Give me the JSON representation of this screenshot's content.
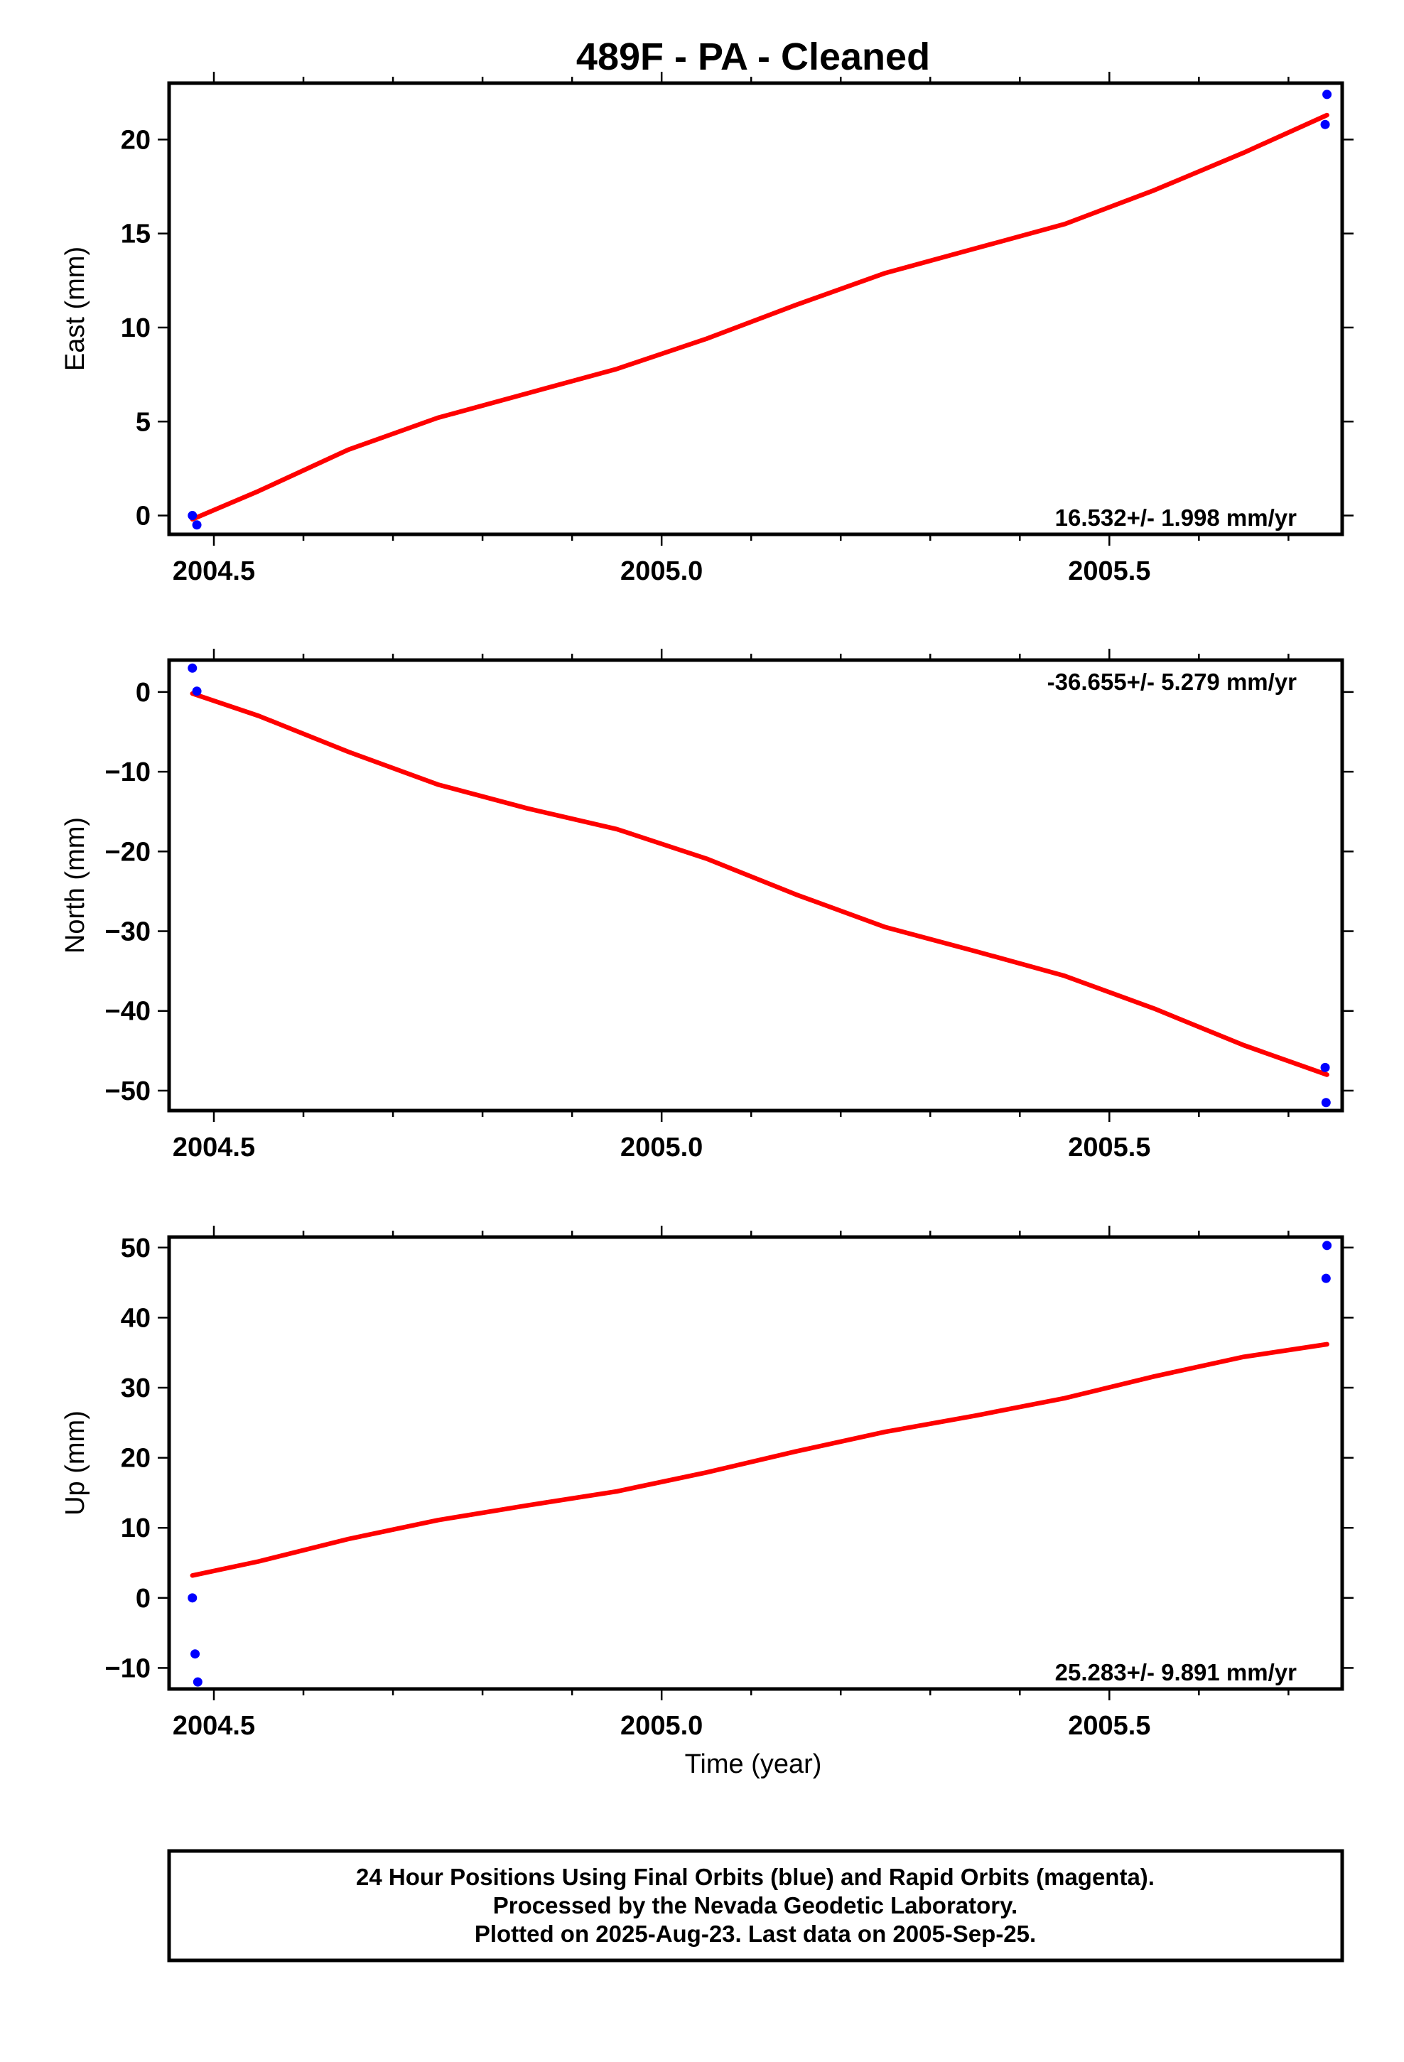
{
  "title": "489F  - PA - Cleaned",
  "footer": {
    "lines": [
      "24 Hour Positions Using Final Orbits (blue) and Rapid Orbits (magenta).",
      "Processed by the Nevada Geodetic Laboratory.",
      "Plotted on 2025-Aug-23. Last data on 2005-Sep-25."
    ]
  },
  "colors": {
    "data_points": "#0000ff",
    "fit_line": "#ff0000",
    "frame": "#000000"
  },
  "chart_data": [
    {
      "type": "scatter",
      "ylabel": "East (mm)",
      "xlabel": "",
      "xlim": [
        2004.45,
        2005.76
      ],
      "ylim": [
        -1,
        23
      ],
      "xticks": [
        2004.5,
        2005.0,
        2005.5
      ],
      "xtick_labels": [
        "2004.5",
        "2005.0",
        "2005.5"
      ],
      "yticks": [
        0,
        5,
        10,
        15,
        20
      ],
      "ytick_labels": [
        "0",
        "5",
        "10",
        "15",
        "20"
      ],
      "rate_text": "16.532+/- 1.998 mm/yr",
      "rate_position": "bottom-right",
      "points": [
        {
          "x": 2004.476,
          "y": 0.0
        },
        {
          "x": 2004.481,
          "y": -0.5
        },
        {
          "x": 2005.741,
          "y": 20.8
        },
        {
          "x": 2005.743,
          "y": 22.4
        }
      ],
      "fit": [
        {
          "x": 2004.476,
          "y": -0.2
        },
        {
          "x": 2004.55,
          "y": 1.3
        },
        {
          "x": 2004.65,
          "y": 3.5
        },
        {
          "x": 2004.75,
          "y": 5.2
        },
        {
          "x": 2004.85,
          "y": 6.5
        },
        {
          "x": 2004.95,
          "y": 7.8
        },
        {
          "x": 2005.05,
          "y": 9.4
        },
        {
          "x": 2005.15,
          "y": 11.2
        },
        {
          "x": 2005.25,
          "y": 12.9
        },
        {
          "x": 2005.35,
          "y": 14.2
        },
        {
          "x": 2005.45,
          "y": 15.5
        },
        {
          "x": 2005.55,
          "y": 17.3
        },
        {
          "x": 2005.65,
          "y": 19.3
        },
        {
          "x": 2005.743,
          "y": 21.3
        }
      ]
    },
    {
      "type": "scatter",
      "ylabel": "North (mm)",
      "xlabel": "",
      "xlim": [
        2004.45,
        2005.76
      ],
      "ylim": [
        -52.5,
        4
      ],
      "xticks": [
        2004.5,
        2005.0,
        2005.5
      ],
      "xtick_labels": [
        "2004.5",
        "2005.0",
        "2005.5"
      ],
      "yticks": [
        0,
        -10,
        -20,
        -30,
        -40,
        -50
      ],
      "ytick_labels": [
        "0",
        "−10",
        "−20",
        "−30",
        "−40",
        "−50"
      ],
      "rate_text": "-36.655+/- 5.279 mm/yr",
      "rate_position": "top-right",
      "points": [
        {
          "x": 2004.476,
          "y": 3.0
        },
        {
          "x": 2004.481,
          "y": 0.1
        },
        {
          "x": 2005.741,
          "y": -47.1
        },
        {
          "x": 2005.742,
          "y": -51.5
        }
      ],
      "fit": [
        {
          "x": 2004.476,
          "y": -0.2
        },
        {
          "x": 2004.55,
          "y": -3.0
        },
        {
          "x": 2004.65,
          "y": -7.5
        },
        {
          "x": 2004.75,
          "y": -11.6
        },
        {
          "x": 2004.85,
          "y": -14.6
        },
        {
          "x": 2004.95,
          "y": -17.2
        },
        {
          "x": 2005.05,
          "y": -20.9
        },
        {
          "x": 2005.15,
          "y": -25.4
        },
        {
          "x": 2005.25,
          "y": -29.5
        },
        {
          "x": 2005.35,
          "y": -32.5
        },
        {
          "x": 2005.45,
          "y": -35.6
        },
        {
          "x": 2005.55,
          "y": -39.7
        },
        {
          "x": 2005.65,
          "y": -44.3
        },
        {
          "x": 2005.743,
          "y": -48.0
        }
      ]
    },
    {
      "type": "scatter",
      "ylabel": "Up (mm)",
      "xlabel": "Time (year)",
      "xlim": [
        2004.45,
        2005.76
      ],
      "ylim": [
        -13,
        51.5
      ],
      "xticks": [
        2004.5,
        2005.0,
        2005.5
      ],
      "xtick_labels": [
        "2004.5",
        "2005.0",
        "2005.5"
      ],
      "yticks": [
        -10,
        0,
        10,
        20,
        30,
        40,
        50
      ],
      "ytick_labels": [
        "−10",
        "0",
        "10",
        "20",
        "30",
        "40",
        "50"
      ],
      "rate_text": "25.283+/- 9.891 mm/yr",
      "rate_position": "bottom-right",
      "points": [
        {
          "x": 2004.476,
          "y": 0.0
        },
        {
          "x": 2004.479,
          "y": -8.0
        },
        {
          "x": 2004.482,
          "y": -12.0
        },
        {
          "x": 2005.742,
          "y": 45.6
        },
        {
          "x": 2005.743,
          "y": 50.3
        }
      ],
      "fit": [
        {
          "x": 2004.476,
          "y": 3.2
        },
        {
          "x": 2004.55,
          "y": 5.2
        },
        {
          "x": 2004.65,
          "y": 8.4
        },
        {
          "x": 2004.75,
          "y": 11.1
        },
        {
          "x": 2004.85,
          "y": 13.2
        },
        {
          "x": 2004.95,
          "y": 15.2
        },
        {
          "x": 2005.05,
          "y": 17.9
        },
        {
          "x": 2005.15,
          "y": 20.9
        },
        {
          "x": 2005.25,
          "y": 23.7
        },
        {
          "x": 2005.35,
          "y": 26.0
        },
        {
          "x": 2005.45,
          "y": 28.5
        },
        {
          "x": 2005.55,
          "y": 31.6
        },
        {
          "x": 2005.65,
          "y": 34.4
        },
        {
          "x": 2005.743,
          "y": 36.2
        }
      ]
    }
  ]
}
